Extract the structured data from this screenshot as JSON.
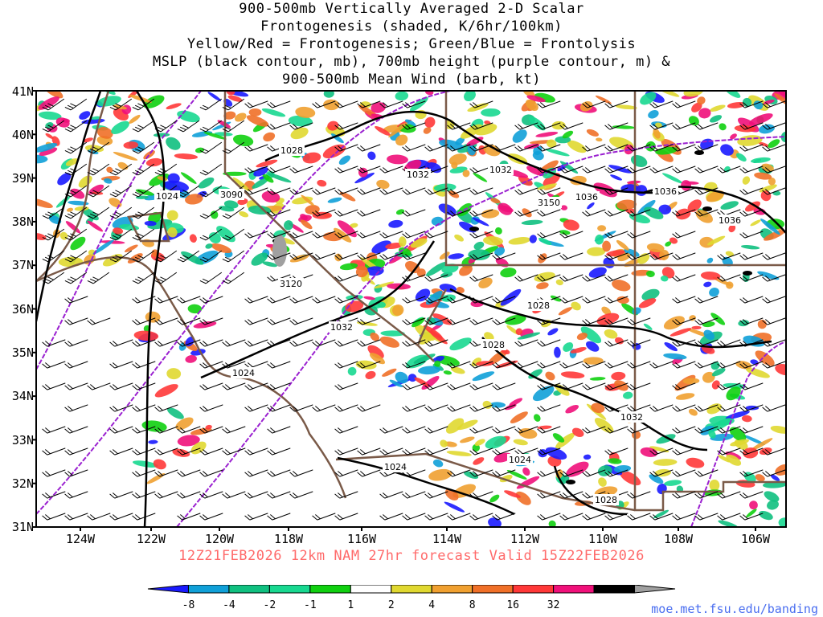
{
  "title_lines": [
    "900-500mb Vertically Averaged 2-D Scalar",
    "Frontogenesis (shaded, K/6hr/100km)",
    "Yellow/Red = Frontogenesis;  Green/Blue = Frontolysis",
    "MSLP (black contour, mb), 700mb height (purple contour, m) &",
    "900-500mb Mean Wind (barb, kt)"
  ],
  "lat_labels": [
    "41N",
    "40N",
    "39N",
    "38N",
    "37N",
    "36N",
    "35N",
    "34N",
    "33N",
    "32N",
    "31N"
  ],
  "lon_labels": [
    "124W",
    "122W",
    "120W",
    "118W",
    "116W",
    "114W",
    "112W",
    "110W",
    "108W",
    "106W"
  ],
  "contour_labels": {
    "mslp": [
      "1028",
      "1032",
      "1032",
      "1024",
      "1036",
      "1036",
      "1036",
      "1028",
      "1032",
      "1028",
      "1024",
      "1032",
      "1024",
      "1024",
      "1028"
    ],
    "height": [
      "3090",
      "3150",
      "3120"
    ]
  },
  "valid_line": "12Z21FEB2026 12km NAM 27hr forecast Valid 15Z22FEB2026",
  "colorbar": {
    "labels": [
      "-8",
      "-4",
      "-2",
      "-1",
      "1",
      "2",
      "4",
      "8",
      "16",
      "32"
    ],
    "colors": [
      "#1a1aff",
      "#10a0d8",
      "#10c080",
      "#18d890",
      "#10d010",
      "#ffffff",
      "#e0d830",
      "#f0a030",
      "#f07028",
      "#ff3838",
      "#f0107a",
      "#000000",
      "#a0a0a0"
    ]
  },
  "credit": "moe.met.fsu.edu/banding"
}
